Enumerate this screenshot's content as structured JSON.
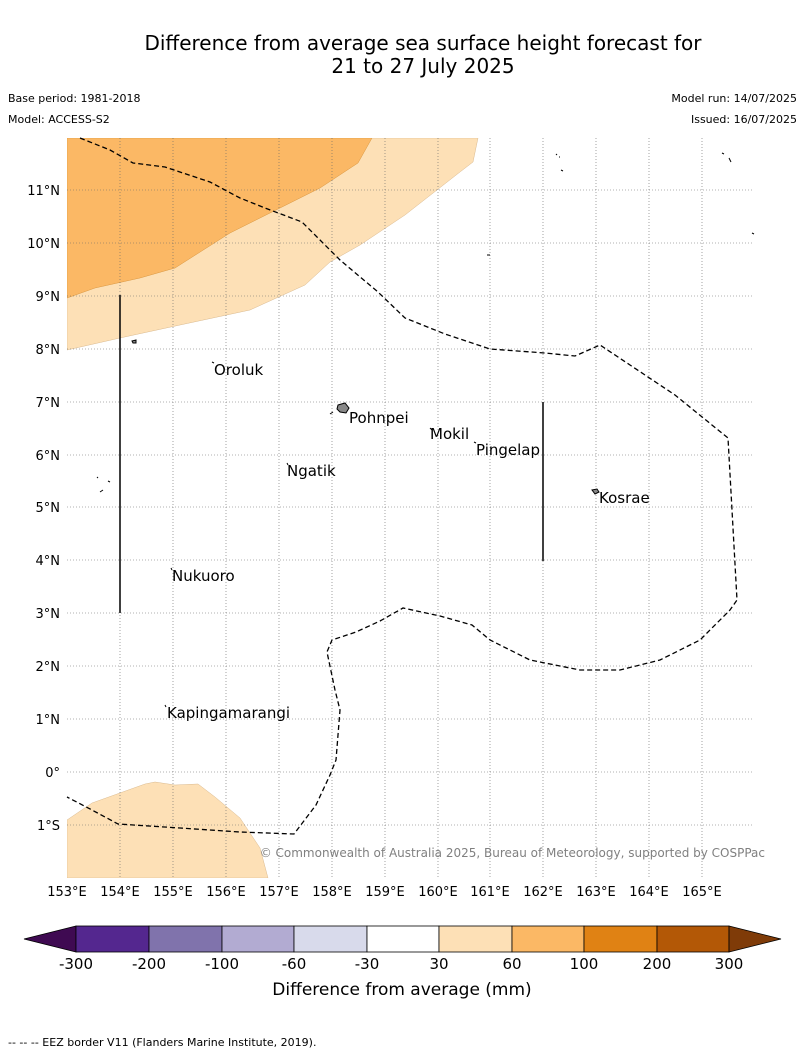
{
  "title": {
    "line1": "Difference from average sea surface height forecast for",
    "line2": "21 to 27 July 2025"
  },
  "meta": {
    "base_period": "Base period: 1981-2018",
    "model": "Model: ACCESS-S2",
    "model_run": "Model run: 14/07/2025",
    "issued": "Issued: 16/07/2025"
  },
  "map": {
    "lat_labels": [
      "11°N",
      "10°N",
      "9°N",
      "8°N",
      "7°N",
      "6°N",
      "5°N",
      "4°N",
      "3°N",
      "2°N",
      "1°N",
      "0°",
      "1°S"
    ],
    "lon_labels": [
      "153°E",
      "154°E",
      "155°E",
      "156°E",
      "157°E",
      "158°E",
      "159°E",
      "160°E",
      "161°E",
      "162°E",
      "163°E",
      "164°E",
      "165°E"
    ],
    "places": [
      {
        "name": "Oroluk"
      },
      {
        "name": "Pohnpei"
      },
      {
        "name": "Mokil"
      },
      {
        "name": "Pingelap"
      },
      {
        "name": "Ngatik"
      },
      {
        "name": "Kosrae"
      },
      {
        "name": "Nukuoro"
      },
      {
        "name": "Kapingamarangi"
      }
    ],
    "copyright": "© Commonwealth of Australia 2025, Bureau of Meteorology, supported by COSPPac",
    "colors": {
      "band_30_60": "#fde0b6",
      "band_60_100": "#fbb865"
    }
  },
  "colorbar": {
    "ticks": [
      "-300",
      "-200",
      "-100",
      "-60",
      "-30",
      "30",
      "60",
      "100",
      "200",
      "300"
    ],
    "colors": [
      "#3f0a52",
      "#54278f",
      "#8073ac",
      "#b2abd2",
      "#d8daeb",
      "#ffffff",
      "#fde0b6",
      "#fbb865",
      "#e08214",
      "#b35806",
      "#7f3b08"
    ],
    "label": "Difference from average (mm)"
  },
  "footer": "--  --  -- EEZ border V11 (Flanders Marine Institute, 2019)."
}
